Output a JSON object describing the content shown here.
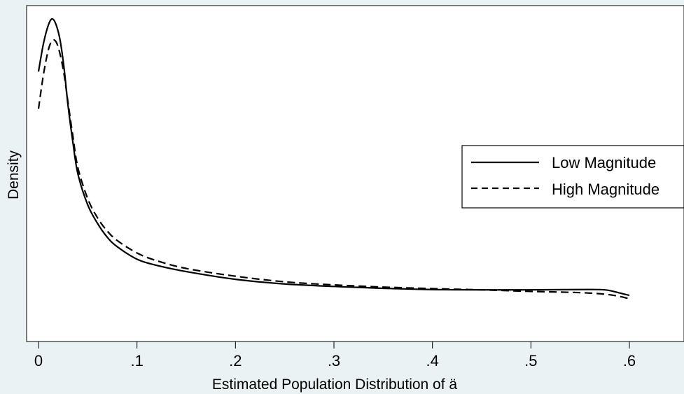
{
  "chart_data": {
    "type": "line",
    "title": "",
    "xlabel": "Estimated Population Distribution of ä",
    "ylabel": "Density",
    "xlim": [
      -0.005,
      0.64
    ],
    "ylim": [
      0,
      1
    ],
    "x_ticks": [
      0,
      0.1,
      0.2,
      0.3,
      0.4,
      0.5,
      0.6
    ],
    "x_tick_labels": [
      "0",
      ".1",
      ".2",
      ".3",
      ".4",
      ".5",
      ".6"
    ],
    "y_ticks_shown": false,
    "grid": false,
    "legend_position": "right",
    "series": [
      {
        "name": "Low Magnitude",
        "style": "solid",
        "color": "#000000",
        "points": [
          [
            0.0,
            0.83
          ],
          [
            0.005,
            0.92
          ],
          [
            0.01,
            0.98
          ],
          [
            0.014,
            1.0
          ],
          [
            0.018,
            0.98
          ],
          [
            0.022,
            0.93
          ],
          [
            0.026,
            0.84
          ],
          [
            0.03,
            0.72
          ],
          [
            0.035,
            0.6
          ],
          [
            0.04,
            0.5
          ],
          [
            0.05,
            0.4
          ],
          [
            0.06,
            0.34
          ],
          [
            0.07,
            0.295
          ],
          [
            0.08,
            0.265
          ],
          [
            0.1,
            0.225
          ],
          [
            0.12,
            0.205
          ],
          [
            0.15,
            0.185
          ],
          [
            0.2,
            0.16
          ],
          [
            0.25,
            0.145
          ],
          [
            0.3,
            0.137
          ],
          [
            0.35,
            0.131
          ],
          [
            0.4,
            0.127
          ],
          [
            0.45,
            0.126
          ],
          [
            0.5,
            0.126
          ],
          [
            0.55,
            0.127
          ],
          [
            0.575,
            0.126
          ],
          [
            0.59,
            0.116
          ],
          [
            0.6,
            0.108
          ]
        ]
      },
      {
        "name": "High Magnitude",
        "style": "dashed",
        "color": "#000000",
        "points": [
          [
            0.0,
            0.71
          ],
          [
            0.005,
            0.82
          ],
          [
            0.01,
            0.9
          ],
          [
            0.014,
            0.93
          ],
          [
            0.018,
            0.925
          ],
          [
            0.022,
            0.885
          ],
          [
            0.026,
            0.82
          ],
          [
            0.03,
            0.73
          ],
          [
            0.035,
            0.62
          ],
          [
            0.04,
            0.52
          ],
          [
            0.05,
            0.42
          ],
          [
            0.06,
            0.358
          ],
          [
            0.07,
            0.315
          ],
          [
            0.08,
            0.285
          ],
          [
            0.1,
            0.245
          ],
          [
            0.12,
            0.22
          ],
          [
            0.15,
            0.195
          ],
          [
            0.2,
            0.17
          ],
          [
            0.25,
            0.152
          ],
          [
            0.3,
            0.142
          ],
          [
            0.35,
            0.135
          ],
          [
            0.4,
            0.13
          ],
          [
            0.45,
            0.126
          ],
          [
            0.5,
            0.121
          ],
          [
            0.55,
            0.117
          ],
          [
            0.575,
            0.112
          ],
          [
            0.59,
            0.105
          ],
          [
            0.6,
            0.097
          ]
        ]
      }
    ]
  }
}
